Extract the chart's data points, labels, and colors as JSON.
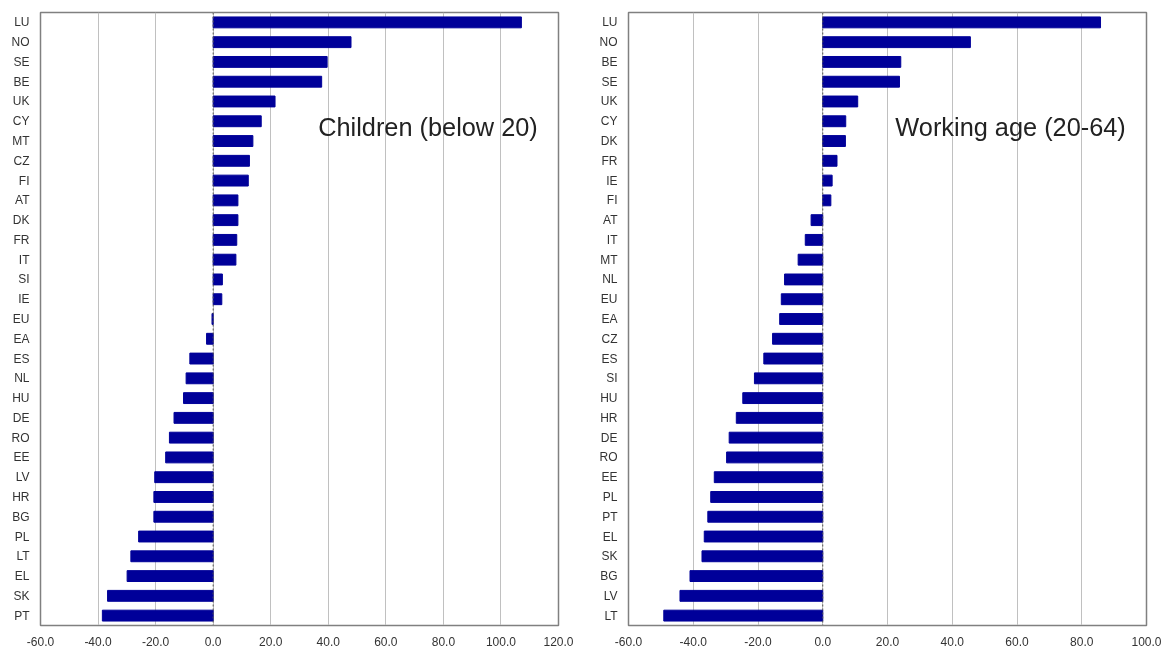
{
  "chart_data": [
    {
      "type": "bar",
      "orientation": "horizontal",
      "annotations": [
        "Children (below 20)"
      ],
      "categories": [
        "LU",
        "NO",
        "SE",
        "BE",
        "UK",
        "CY",
        "MT",
        "CZ",
        "FI",
        "AT",
        "DK",
        "FR",
        "IT",
        "SI",
        "IE",
        "EU",
        "EA",
        "ES",
        "NL",
        "HU",
        "DE",
        "RO",
        "EE",
        "LV",
        "HR",
        "BG",
        "PL",
        "LT",
        "EL",
        "SK",
        "PT"
      ],
      "values": [
        107.1,
        47.9,
        39.6,
        37.7,
        21.5,
        16.7,
        13.8,
        12.6,
        12.2,
        8.6,
        8.6,
        8.2,
        7.9,
        3.2,
        3.0,
        -0.4,
        -2.3,
        -8.1,
        -9.4,
        -10.3,
        -13.6,
        -15.2,
        -16.5,
        -20.3,
        -20.6,
        -20.6,
        -25.9,
        -28.6,
        -29.9,
        -36.7,
        -38.5
      ],
      "color": "#000099",
      "xlim": [
        -60,
        120
      ],
      "xticks": [
        {
          "value": -60,
          "label": "-60.0"
        },
        {
          "value": -40,
          "label": "-40.0"
        },
        {
          "value": -20,
          "label": "-20.0"
        },
        {
          "value": 0,
          "label": "0.0"
        },
        {
          "value": 20,
          "label": "20.0"
        },
        {
          "value": 40,
          "label": "40.0"
        },
        {
          "value": 60,
          "label": "60.0"
        },
        {
          "value": 80,
          "label": "80.0"
        },
        {
          "value": 100,
          "label": "100.0"
        },
        {
          "value": 120,
          "label": "120.0"
        }
      ],
      "ref_lines": [
        {
          "axis": "x",
          "value": 0,
          "color": "#555555",
          "line_style": "dotted"
        }
      ],
      "grid": "x"
    },
    {
      "type": "bar",
      "orientation": "horizontal",
      "annotations": [
        "Working age (20-64)"
      ],
      "categories": [
        "LU",
        "NO",
        "BE",
        "SE",
        "UK",
        "CY",
        "DK",
        "FR",
        "IE",
        "FI",
        "AT",
        "IT",
        "MT",
        "NL",
        "EU",
        "EA",
        "CZ",
        "ES",
        "SI",
        "HU",
        "HR",
        "DE",
        "RO",
        "EE",
        "PL",
        "PT",
        "EL",
        "SK",
        "BG",
        "LV",
        "LT"
      ],
      "values": [
        85.8,
        45.6,
        24.1,
        23.7,
        10.8,
        7.1,
        7.0,
        4.4,
        2.9,
        2.5,
        -3.6,
        -5.4,
        -7.6,
        -11.8,
        -12.8,
        -13.3,
        -15.5,
        -18.2,
        -21.1,
        -24.7,
        -26.7,
        -28.9,
        -29.7,
        -33.5,
        -34.6,
        -35.5,
        -36.6,
        -37.3,
        -41.0,
        -44.1,
        -49.1
      ],
      "color": "#000099",
      "xlim": [
        -60,
        100
      ],
      "xticks": [
        {
          "value": -60,
          "label": "-60.0"
        },
        {
          "value": -40,
          "label": "-40.0"
        },
        {
          "value": -20,
          "label": "-20.0"
        },
        {
          "value": 0,
          "label": "0.0"
        },
        {
          "value": 20,
          "label": "20.0"
        },
        {
          "value": 40,
          "label": "40.0"
        },
        {
          "value": 60,
          "label": "60.0"
        },
        {
          "value": 80,
          "label": "80.0"
        },
        {
          "value": 100,
          "label": "100.0"
        }
      ],
      "ref_lines": [
        {
          "axis": "x",
          "value": 0,
          "color": "#555555",
          "line_style": "dotted"
        }
      ],
      "grid": "x"
    }
  ]
}
